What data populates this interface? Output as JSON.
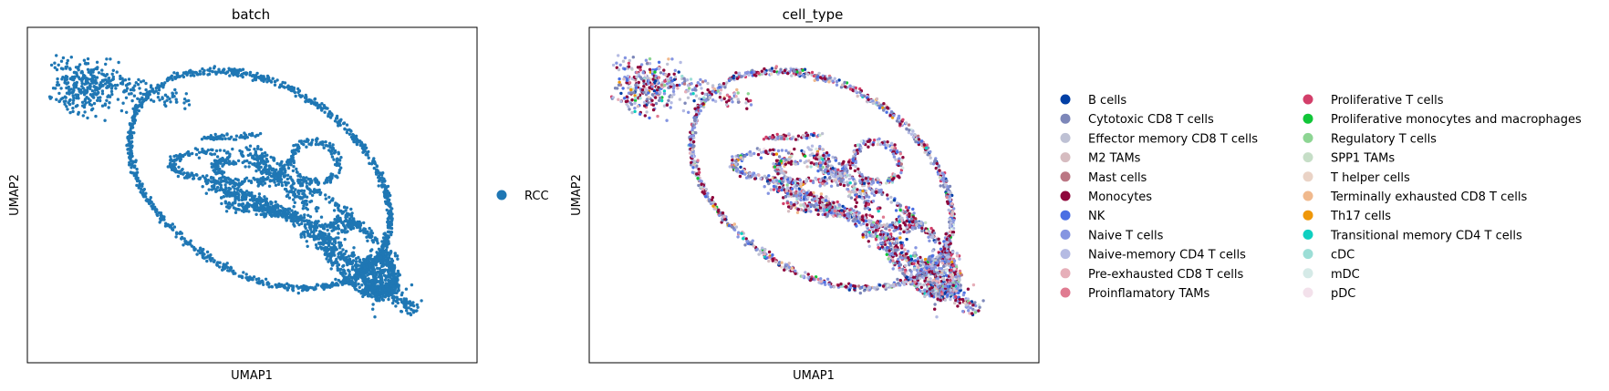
{
  "chart_data": [
    {
      "type": "scatter",
      "title": "batch",
      "xlabel": "UMAP1",
      "ylabel": "UMAP2",
      "legend_position": "right",
      "grid": false,
      "ticks": false,
      "series": [
        {
          "name": "RCC",
          "color": "#1f77b4"
        }
      ]
    },
    {
      "type": "scatter",
      "title": "cell_type",
      "xlabel": "UMAP1",
      "ylabel": "UMAP2",
      "legend_position": "right",
      "legend_columns": 2,
      "grid": false,
      "ticks": false,
      "series": [
        {
          "name": "B cells",
          "color": "#023fa5"
        },
        {
          "name": "Cytotoxic CD8 T cells",
          "color": "#7d87b9"
        },
        {
          "name": "Effector memory CD8 T cells",
          "color": "#bec1d4"
        },
        {
          "name": "M2 TAMs",
          "color": "#d6bcc0"
        },
        {
          "name": "Mast cells",
          "color": "#bb7784"
        },
        {
          "name": "Monocytes",
          "color": "#8e063b"
        },
        {
          "name": "NK",
          "color": "#4a6fe3"
        },
        {
          "name": "Naive T cells",
          "color": "#8595e1"
        },
        {
          "name": "Naive-memory CD4 T cells",
          "color": "#b5bbe3"
        },
        {
          "name": "Pre-exhausted CD8 T cells",
          "color": "#e6afb9"
        },
        {
          "name": "Proinflamatory TAMs",
          "color": "#e07b91"
        },
        {
          "name": "Proliferative T cells",
          "color": "#d33f6a"
        },
        {
          "name": "Proliferative monocytes and macrophages",
          "color": "#11c638"
        },
        {
          "name": "Regulatory T cells",
          "color": "#8dd593"
        },
        {
          "name": "SPP1 TAMs",
          "color": "#c6dec7"
        },
        {
          "name": "T helper cells",
          "color": "#ead3c6"
        },
        {
          "name": "Terminally exhausted CD8 T cells",
          "color": "#f0b98d"
        },
        {
          "name": "Th17 cells",
          "color": "#ef9708"
        },
        {
          "name": "Transitional memory CD4 T cells",
          "color": "#0fcfc0"
        },
        {
          "name": "cDC",
          "color": "#9cded6"
        },
        {
          "name": "mDC",
          "color": "#d5eae7"
        },
        {
          "name": "pDC",
          "color": "#f3e1eb"
        }
      ]
    }
  ]
}
